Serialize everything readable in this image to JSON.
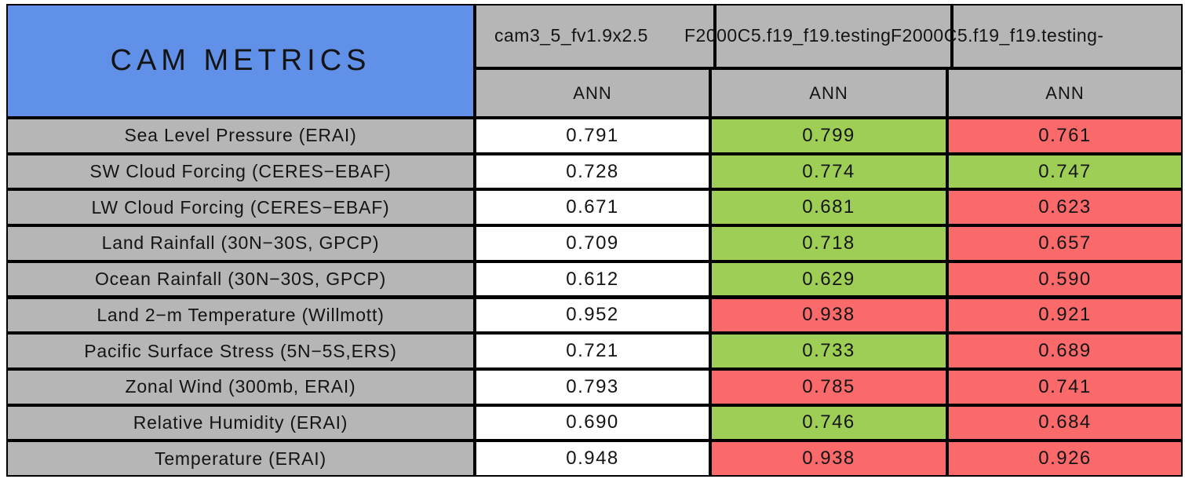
{
  "chart_data": {
    "type": "table",
    "title": "CAM METRICS",
    "columns": [
      "cam3_5_fv1.9x2.5",
      "F2000C5.f19_f19.testing",
      "F2000C5.f19_f19.testing-"
    ],
    "subheaders": [
      "ANN",
      "ANN",
      "ANN"
    ],
    "row_labels": [
      "Sea Level Pressure (ERAI)",
      "SW Cloud Forcing (CERES−EBAF)",
      "LW Cloud Forcing (CERES−EBAF)",
      "Land Rainfall (30N−30S, GPCP)",
      "Ocean Rainfall (30N−30S, GPCP)",
      "Land 2−m Temperature (Willmott)",
      "Pacific Surface Stress (5N−5S,ERS)",
      "Zonal Wind (300mb, ERAI)",
      "Relative Humidity (ERAI)",
      "Temperature (ERAI)"
    ],
    "values": [
      [
        "0.791",
        "0.799",
        "0.761"
      ],
      [
        "0.728",
        "0.774",
        "0.747"
      ],
      [
        "0.671",
        "0.681",
        "0.623"
      ],
      [
        "0.709",
        "0.718",
        "0.657"
      ],
      [
        "0.612",
        "0.629",
        "0.590"
      ],
      [
        "0.952",
        "0.938",
        "0.921"
      ],
      [
        "0.721",
        "0.733",
        "0.689"
      ],
      [
        "0.793",
        "0.785",
        "0.741"
      ],
      [
        "0.690",
        "0.746",
        "0.684"
      ],
      [
        "0.948",
        "0.938",
        "0.926"
      ]
    ],
    "cell_colors": [
      [
        "white",
        "green",
        "red"
      ],
      [
        "white",
        "green",
        "green"
      ],
      [
        "white",
        "green",
        "red"
      ],
      [
        "white",
        "green",
        "red"
      ],
      [
        "white",
        "green",
        "red"
      ],
      [
        "white",
        "red",
        "red"
      ],
      [
        "white",
        "green",
        "red"
      ],
      [
        "white",
        "red",
        "red"
      ],
      [
        "white",
        "green",
        "red"
      ],
      [
        "white",
        "red",
        "red"
      ]
    ]
  },
  "colors": {
    "white": "#ffffff",
    "green": "#9fce56",
    "red": "#fa6a6a",
    "gray": "#b6b6b6",
    "blue": "#6190e8",
    "border": "#000000"
  }
}
